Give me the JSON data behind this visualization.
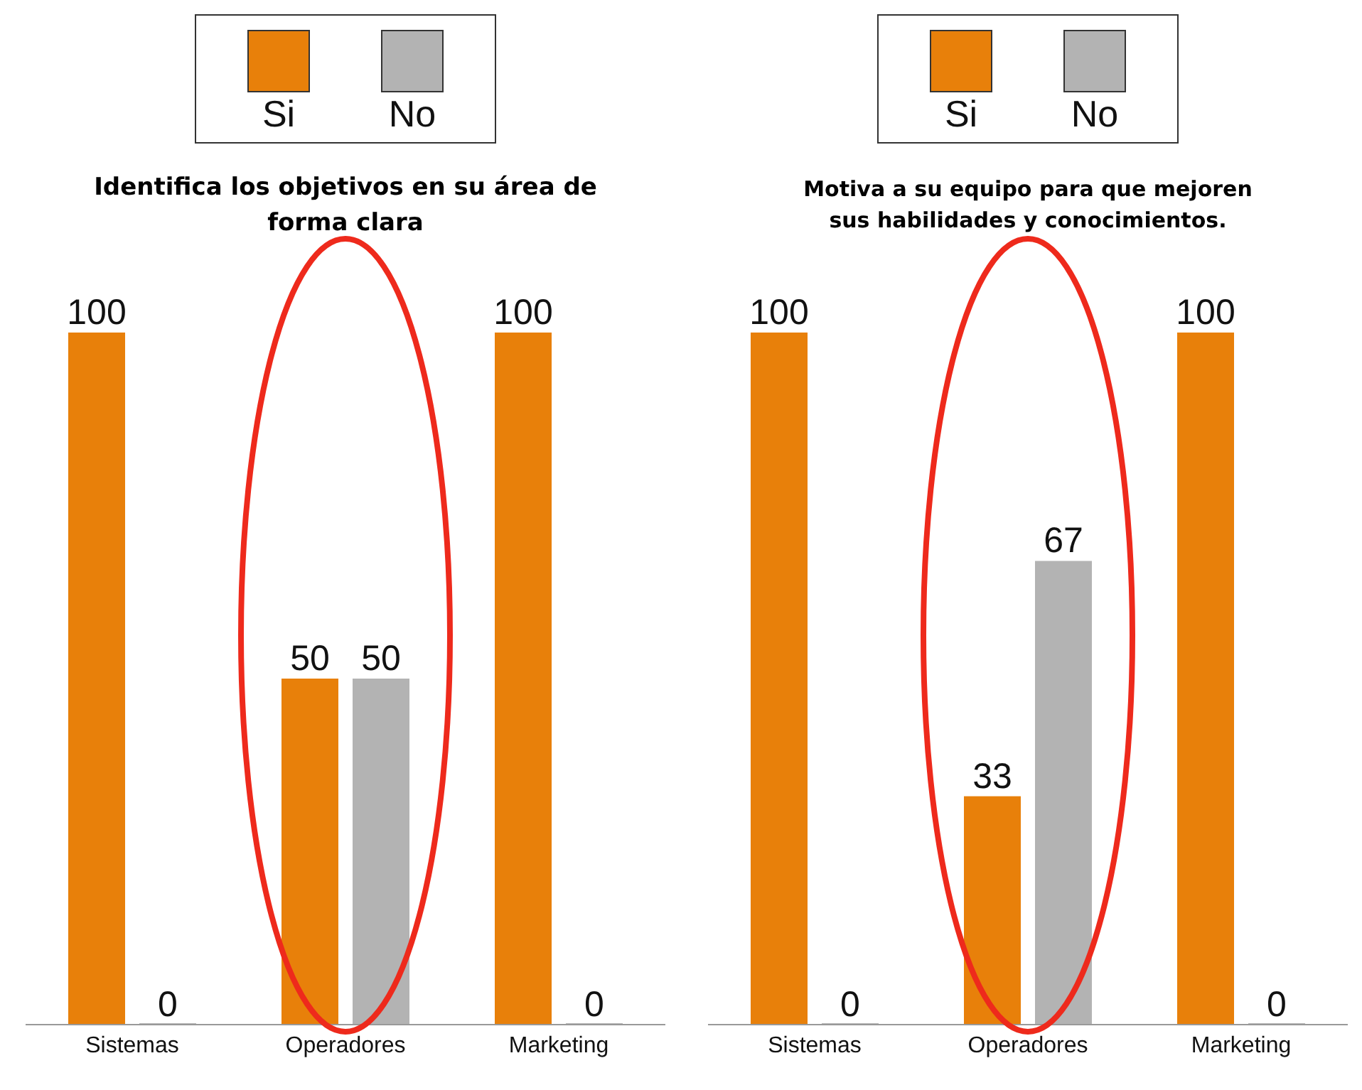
{
  "chart_data": [
    {
      "type": "bar",
      "title": "Identifica los objetivos en su área de forma clara",
      "categories": [
        "Sistemas",
        "Operadores",
        "Marketing"
      ],
      "series": [
        {
          "name": "Si",
          "color": "#e8800a",
          "values": [
            100,
            50,
            100
          ]
        },
        {
          "name": "No",
          "color": "#b3b3b3",
          "values": [
            0,
            50,
            0
          ]
        }
      ],
      "data_labels": true,
      "legend": "top",
      "grid": false,
      "tick_labels": "x"
    },
    {
      "type": "bar",
      "title": "Motiva a su equipo para que mejoren sus habilidades y conocimientos.",
      "categories": [
        "Sistemas",
        "Operadores",
        "Marketing"
      ],
      "series": [
        {
          "name": "Si",
          "color": "#e8800a",
          "values": [
            100,
            33,
            100
          ]
        },
        {
          "name": "No",
          "color": "#b3b3b3",
          "values": [
            0,
            67,
            0
          ]
        }
      ],
      "data_labels": true,
      "legend": "top",
      "grid": false,
      "tick_labels": "x"
    }
  ]
}
